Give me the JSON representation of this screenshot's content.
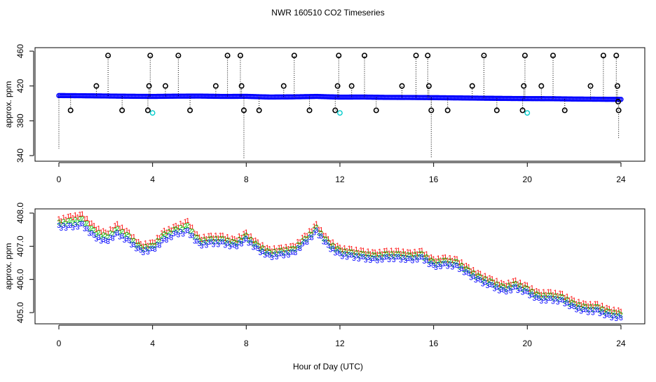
{
  "chart_data": [
    {
      "type": "scatter",
      "title": "NWR  160510  CO2 Timeseries",
      "xlabel": "",
      "ylabel": "approx. ppm",
      "xlim": [
        0,
        24
      ],
      "ylim": [
        334,
        462
      ],
      "xticks": [
        0,
        4,
        8,
        12,
        16,
        20,
        24
      ],
      "yticks": [
        340,
        380,
        420,
        460
      ],
      "grid": false,
      "baseline": {
        "color": "#0000ff",
        "points": [
          [
            0,
            409.0
          ],
          [
            1,
            408.8
          ],
          [
            2,
            408.5
          ],
          [
            3,
            408.2
          ],
          [
            4,
            408.0
          ],
          [
            5,
            408.3
          ],
          [
            6,
            408.4
          ],
          [
            7,
            408.0
          ],
          [
            8,
            408.1
          ],
          [
            9,
            407.3
          ],
          [
            10,
            407.5
          ],
          [
            11,
            408.0
          ],
          [
            12,
            407.2
          ],
          [
            13,
            407.3
          ],
          [
            14,
            406.9
          ],
          [
            15,
            406.8
          ],
          [
            16,
            406.6
          ],
          [
            17,
            406.3
          ],
          [
            18,
            406.0
          ],
          [
            19,
            405.7
          ],
          [
            20,
            405.5
          ],
          [
            21,
            405.4
          ],
          [
            22,
            405.0
          ],
          [
            23,
            404.8
          ],
          [
            24,
            404.6
          ]
        ]
      },
      "outliers": {
        "color": "#000000",
        "points": [
          [
            0.5,
            392
          ],
          [
            1.6,
            420
          ],
          [
            2.1,
            455
          ],
          [
            2.7,
            392
          ],
          [
            3.8,
            392
          ],
          [
            3.85,
            420
          ],
          [
            3.9,
            455
          ],
          [
            4.55,
            420
          ],
          [
            5.1,
            455
          ],
          [
            5.6,
            392
          ],
          [
            6.7,
            420
          ],
          [
            7.2,
            455
          ],
          [
            7.75,
            455
          ],
          [
            7.8,
            420
          ],
          [
            7.9,
            392
          ],
          [
            8.55,
            392
          ],
          [
            9.6,
            420
          ],
          [
            10.05,
            455
          ],
          [
            10.7,
            392
          ],
          [
            11.8,
            392
          ],
          [
            11.9,
            420
          ],
          [
            11.95,
            455
          ],
          [
            12.5,
            420
          ],
          [
            13.05,
            455
          ],
          [
            13.55,
            392
          ],
          [
            14.65,
            420
          ],
          [
            15.25,
            455
          ],
          [
            15.75,
            455
          ],
          [
            15.8,
            420
          ],
          [
            15.9,
            392
          ],
          [
            16.6,
            392
          ],
          [
            17.65,
            420
          ],
          [
            18.15,
            455
          ],
          [
            18.7,
            392
          ],
          [
            19.8,
            392
          ],
          [
            19.85,
            420
          ],
          [
            19.9,
            455
          ],
          [
            20.6,
            420
          ],
          [
            21.1,
            455
          ],
          [
            21.6,
            392
          ],
          [
            22.7,
            420
          ],
          [
            23.25,
            455
          ],
          [
            23.8,
            455
          ],
          [
            23.85,
            420
          ],
          [
            23.9,
            392
          ],
          [
            23.88,
            402
          ]
        ]
      },
      "drops": {
        "color": "#000000",
        "points": [
          [
            0,
            348
          ],
          [
            7.9,
            337
          ],
          [
            15.9,
            337
          ],
          [
            23.9,
            360
          ]
        ]
      },
      "flagged": {
        "color": "#00cccc",
        "points": [
          [
            4.0,
            389
          ],
          [
            12.0,
            389
          ],
          [
            20.0,
            389
          ]
        ]
      }
    },
    {
      "type": "scatter",
      "title": "",
      "xlabel": "Hour of Day (UTC)",
      "ylabel": "approx. ppm",
      "xlim": [
        0,
        24
      ],
      "ylim": [
        404.6,
        408.15
      ],
      "xticks": [
        0,
        4,
        8,
        12,
        16,
        20,
        24
      ],
      "yticks": [
        "405.0",
        "406.0",
        "407.0",
        "408.0"
      ],
      "grid": false,
      "series": [
        {
          "marker": "1",
          "color": "#ff0000",
          "points": [
            [
              0,
              407.8
            ],
            [
              0.5,
              407.9
            ],
            [
              1,
              407.95
            ],
            [
              1.5,
              407.6
            ],
            [
              2,
              407.4
            ],
            [
              2.5,
              407.65
            ],
            [
              3,
              407.4
            ],
            [
              3.5,
              407.05
            ],
            [
              4,
              407.1
            ],
            [
              4.5,
              407.45
            ],
            [
              5,
              407.6
            ],
            [
              5.5,
              407.75
            ],
            [
              6,
              407.25
            ],
            [
              6.5,
              407.3
            ],
            [
              7,
              407.3
            ],
            [
              7.5,
              407.2
            ],
            [
              8,
              407.4
            ],
            [
              8.5,
              407.1
            ],
            [
              9,
              406.9
            ],
            [
              9.5,
              406.95
            ],
            [
              10,
              407.0
            ],
            [
              10.5,
              407.3
            ],
            [
              11,
              407.65
            ],
            [
              11.5,
              407.2
            ],
            [
              12,
              406.95
            ],
            [
              12.5,
              406.9
            ],
            [
              13,
              406.85
            ],
            [
              13.5,
              406.8
            ],
            [
              14,
              406.85
            ],
            [
              14.5,
              406.85
            ],
            [
              15,
              406.8
            ],
            [
              15.5,
              406.85
            ],
            [
              16,
              406.6
            ],
            [
              16.5,
              406.65
            ],
            [
              17,
              406.6
            ],
            [
              17.5,
              406.35
            ],
            [
              18,
              406.15
            ],
            [
              18.5,
              406.0
            ],
            [
              19,
              405.85
            ],
            [
              19.5,
              405.95
            ],
            [
              20,
              405.8
            ],
            [
              20.5,
              405.6
            ],
            [
              21,
              405.6
            ],
            [
              21.5,
              405.55
            ],
            [
              22,
              405.35
            ],
            [
              22.5,
              405.25
            ],
            [
              23,
              405.25
            ],
            [
              23.5,
              405.1
            ],
            [
              24,
              405.05
            ]
          ]
        },
        {
          "marker": "2",
          "color": "#00c000",
          "points": [
            [
              0,
              407.7
            ],
            [
              0.5,
              407.75
            ],
            [
              1,
              407.8
            ],
            [
              1.5,
              407.45
            ],
            [
              2,
              407.28
            ],
            [
              2.5,
              407.5
            ],
            [
              3,
              407.28
            ],
            [
              3.5,
              406.95
            ],
            [
              4,
              407.0
            ],
            [
              4.5,
              407.35
            ],
            [
              5,
              407.5
            ],
            [
              5.5,
              407.6
            ],
            [
              6,
              407.15
            ],
            [
              6.5,
              407.2
            ],
            [
              7,
              407.2
            ],
            [
              7.5,
              407.1
            ],
            [
              8,
              407.3
            ],
            [
              8.5,
              407.0
            ],
            [
              9,
              406.8
            ],
            [
              9.5,
              406.85
            ],
            [
              10,
              406.9
            ],
            [
              10.5,
              407.2
            ],
            [
              11,
              407.55
            ],
            [
              11.5,
              407.1
            ],
            [
              12,
              406.85
            ],
            [
              12.5,
              406.8
            ],
            [
              13,
              406.75
            ],
            [
              13.5,
              406.7
            ],
            [
              14,
              406.75
            ],
            [
              14.5,
              406.75
            ],
            [
              15,
              406.7
            ],
            [
              15.5,
              406.75
            ],
            [
              16,
              406.5
            ],
            [
              16.5,
              406.55
            ],
            [
              17,
              406.5
            ],
            [
              17.5,
              406.25
            ],
            [
              18,
              406.05
            ],
            [
              18.5,
              405.9
            ],
            [
              19,
              405.75
            ],
            [
              19.5,
              405.85
            ],
            [
              20,
              405.7
            ],
            [
              20.5,
              405.5
            ],
            [
              21,
              405.5
            ],
            [
              21.5,
              405.45
            ],
            [
              22,
              405.25
            ],
            [
              22.5,
              405.15
            ],
            [
              23,
              405.15
            ],
            [
              23.5,
              405.0
            ],
            [
              24,
              404.95
            ]
          ]
        },
        {
          "marker": "3",
          "color": "#0000ff",
          "points": [
            [
              0,
              407.6
            ],
            [
              0.5,
              407.6
            ],
            [
              1,
              407.65
            ],
            [
              1.5,
              407.3
            ],
            [
              2,
              407.15
            ],
            [
              2.5,
              407.38
            ],
            [
              3,
              407.15
            ],
            [
              3.5,
              406.85
            ],
            [
              4,
              406.9
            ],
            [
              4.5,
              407.2
            ],
            [
              5,
              407.38
            ],
            [
              5.5,
              407.45
            ],
            [
              6,
              407.05
            ],
            [
              6.5,
              407.1
            ],
            [
              7,
              407.1
            ],
            [
              7.5,
              407.0
            ],
            [
              8,
              407.2
            ],
            [
              8.5,
              406.9
            ],
            [
              9,
              406.7
            ],
            [
              9.5,
              406.75
            ],
            [
              10,
              406.8
            ],
            [
              10.5,
              407.1
            ],
            [
              11,
              407.45
            ],
            [
              11.5,
              407.0
            ],
            [
              12,
              406.75
            ],
            [
              12.5,
              406.7
            ],
            [
              13,
              406.65
            ],
            [
              13.5,
              406.6
            ],
            [
              14,
              406.65
            ],
            [
              14.5,
              406.65
            ],
            [
              15,
              406.6
            ],
            [
              15.5,
              406.65
            ],
            [
              16,
              406.4
            ],
            [
              16.5,
              406.45
            ],
            [
              17,
              406.4
            ],
            [
              17.5,
              406.15
            ],
            [
              18,
              405.95
            ],
            [
              18.5,
              405.8
            ],
            [
              19,
              405.65
            ],
            [
              19.5,
              405.75
            ],
            [
              20,
              405.6
            ],
            [
              20.5,
              405.4
            ],
            [
              21,
              405.4
            ],
            [
              21.5,
              405.35
            ],
            [
              22,
              405.15
            ],
            [
              22.5,
              405.05
            ],
            [
              23,
              405.05
            ],
            [
              23.5,
              404.9
            ],
            [
              24,
              404.85
            ]
          ]
        }
      ]
    }
  ]
}
